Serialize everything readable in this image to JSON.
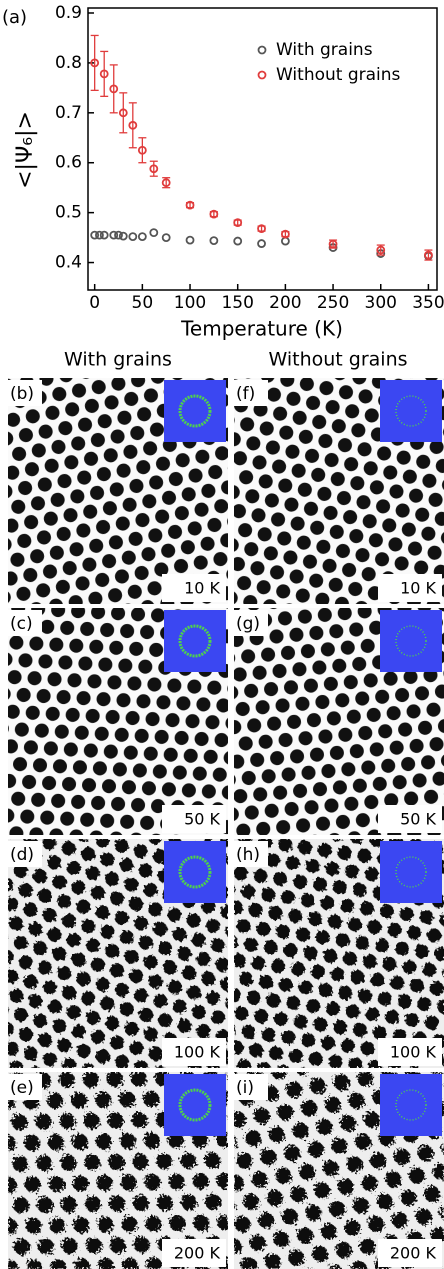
{
  "chart_data": {
    "type": "scatter",
    "panel_label": "(a)",
    "x_label": "Temperature (K)",
    "y_label": "<|Ψ₆|>",
    "xlim": [
      -7,
      359
    ],
    "xticks": [
      0,
      50,
      100,
      150,
      200,
      250,
      300,
      350
    ],
    "ylim": [
      0.345,
      0.91
    ],
    "yticks": [
      0.4,
      0.5,
      0.6,
      0.7,
      0.8,
      0.9
    ],
    "legend": "upper right",
    "series": [
      {
        "name": "With grains",
        "color": "#555555",
        "x": [
          0,
          5,
          10,
          20,
          25,
          30,
          40,
          50,
          62,
          75,
          100,
          125,
          150,
          175,
          200,
          250,
          300,
          350
        ],
        "values": [
          0.455,
          0.455,
          0.455,
          0.455,
          0.455,
          0.453,
          0.452,
          0.452,
          0.46,
          0.45,
          0.445,
          0.444,
          0.443,
          0.438,
          0.443,
          0.43,
          0.418,
          0.413
        ]
      },
      {
        "name": "Without grains",
        "color": "#e03c3c",
        "x": [
          0,
          10,
          20,
          30,
          40,
          50,
          62,
          75,
          100,
          125,
          150,
          175,
          200,
          250,
          300,
          350
        ],
        "values": [
          0.8,
          0.778,
          0.748,
          0.7,
          0.675,
          0.625,
          0.588,
          0.56,
          0.515,
          0.497,
          0.48,
          0.468,
          0.457,
          0.437,
          0.425,
          0.415
        ],
        "errors": [
          0.055,
          0.045,
          0.048,
          0.04,
          0.045,
          0.025,
          0.015,
          0.01,
          0.005,
          0.005,
          0.005,
          0.005,
          0.005,
          0.008,
          0.01,
          0.01
        ]
      }
    ]
  },
  "panels": {
    "column_titles": [
      "With grains",
      "Without grains"
    ],
    "items": [
      {
        "label": "(b)",
        "temperature": "10 K"
      },
      {
        "label": "(c)",
        "temperature": "50 K"
      },
      {
        "label": "(d)",
        "temperature": "100 K"
      },
      {
        "label": "(e)",
        "temperature": "200 K"
      },
      {
        "label": "(f)",
        "temperature": "10 K"
      },
      {
        "label": "(g)",
        "temperature": "50 K"
      },
      {
        "label": "(h)",
        "temperature": "100 K"
      },
      {
        "label": "(i)",
        "temperature": "200 K"
      }
    ]
  }
}
